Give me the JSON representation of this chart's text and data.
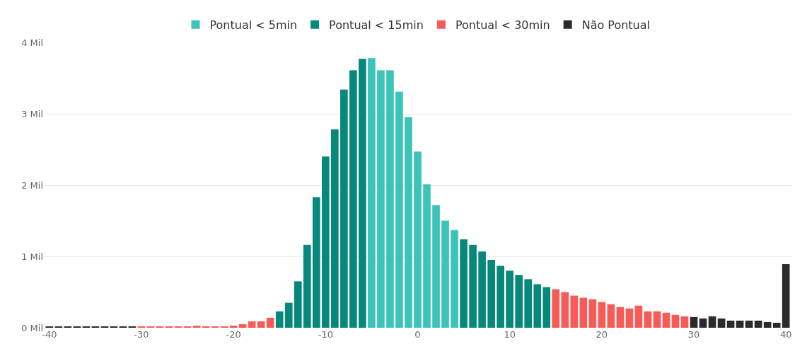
{
  "chart_data": {
    "type": "bar",
    "legend": "top",
    "grid": "y",
    "xlim": [
      -40.6,
      40.6
    ],
    "xticks": [
      -40,
      -30,
      -20,
      -10,
      0,
      10,
      20,
      30,
      40
    ],
    "ylim": [
      0,
      4
    ],
    "yticks": [
      {
        "value": 0,
        "label": "0 Mil"
      },
      {
        "value": 1,
        "label": "1 Mil"
      },
      {
        "value": 2,
        "label": "2 Mil"
      },
      {
        "value": 3,
        "label": "3 Mil"
      },
      {
        "value": 4,
        "label": "4 Mil"
      }
    ],
    "series": [
      {
        "name": "Pontual < 5min",
        "color": "#3cc4b8",
        "x": [
          -5,
          -4,
          -3,
          -2,
          -1,
          0,
          1,
          2,
          3,
          4
        ],
        "values": [
          3.78,
          3.61,
          3.61,
          3.31,
          2.95,
          2.47,
          2.01,
          1.72,
          1.5,
          1.37
        ]
      },
      {
        "name": "Pontual < 15min",
        "color": "#06897a",
        "x": [
          -15,
          -14,
          -13,
          -12,
          -11,
          -10,
          -9,
          -8,
          -7,
          -6,
          5,
          6,
          7,
          8,
          9,
          10,
          11,
          12,
          13,
          14
        ],
        "values": [
          0.23,
          0.35,
          0.65,
          1.16,
          1.83,
          2.4,
          2.78,
          3.34,
          3.61,
          3.77,
          1.24,
          1.16,
          1.07,
          0.95,
          0.87,
          0.8,
          0.74,
          0.68,
          0.61,
          0.57
        ]
      },
      {
        "name": "Pontual < 30min",
        "color": "#f85a58",
        "x": [
          -30,
          -29,
          -28,
          -27,
          -26,
          -25,
          -24,
          -23,
          -22,
          -21,
          -20,
          -19,
          -18,
          -17,
          -16,
          15,
          16,
          17,
          18,
          19,
          20,
          21,
          22,
          23,
          24,
          25,
          26,
          27,
          28,
          29
        ],
        "values": [
          0.01,
          0.01,
          0.01,
          0.01,
          0.01,
          0.01,
          0.03,
          0.01,
          0.02,
          0.02,
          0.03,
          0.05,
          0.09,
          0.09,
          0.14,
          0.54,
          0.5,
          0.45,
          0.42,
          0.4,
          0.36,
          0.33,
          0.29,
          0.27,
          0.31,
          0.23,
          0.23,
          0.21,
          0.18,
          0.16
        ]
      },
      {
        "name": "Não Pontual",
        "color": "#2b2b2b",
        "x": [
          -40,
          -39,
          -38,
          -37,
          -36,
          -35,
          -34,
          -33,
          -32,
          -31,
          30,
          31,
          32,
          33,
          34,
          35,
          36,
          37,
          38,
          39,
          40
        ],
        "values": [
          0.01,
          0.01,
          0.01,
          0.01,
          0.01,
          0.01,
          0.01,
          0.01,
          0.01,
          0.01,
          0.15,
          0.13,
          0.16,
          0.13,
          0.1,
          0.1,
          0.1,
          0.1,
          0.08,
          0.07,
          0.89
        ]
      }
    ]
  }
}
